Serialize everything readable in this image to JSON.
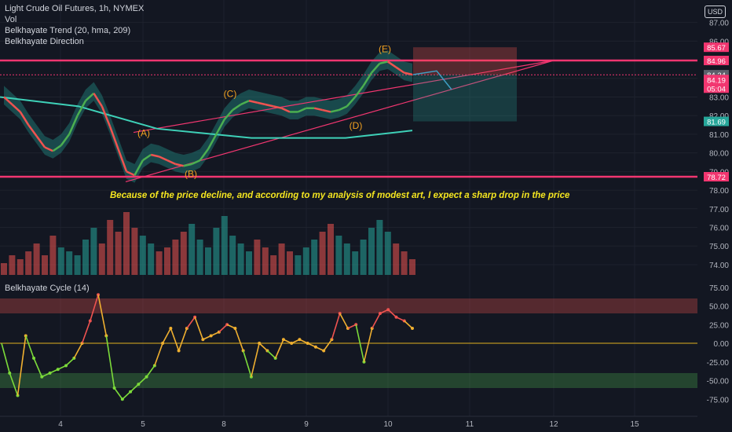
{
  "legend": {
    "symbol": "Light Crude Oil Futures, 1h, NYMEX",
    "vol": "Vol",
    "trend": "Belkhayate Trend (20, hma, 209)",
    "direction": "Belkhayate Direction",
    "cycle": "Belkhayate Cycle  (14)"
  },
  "currency": "USD",
  "note": "Because of the price decline, and according to my analysis of modest art, I expect a sharp drop in the price",
  "colors": {
    "background": "#131722",
    "pink_line": "#f23670",
    "teal": "#26a69a",
    "red": "#ef5350",
    "green_line": "#4caf50",
    "annotation_text": "#f0a020",
    "note_text": "#f5e620"
  },
  "chart_data": [
    {
      "type": "line",
      "title": "Light Crude Oil Futures, 1h, NYMEX",
      "x_tick_labels": [
        "4",
        "5",
        "8",
        "9",
        "10",
        "11",
        "12",
        "15"
      ],
      "y_tick_labels": [
        "87.00",
        "86.00",
        "84.00",
        "83.00",
        "82.00",
        "81.00",
        "80.00",
        "79.00",
        "78.00",
        "77.00",
        "76.00",
        "75.00",
        "74.00"
      ],
      "ylim": [
        73.4,
        88.2
      ],
      "close": [
        83.0,
        82.6,
        82.2,
        81.5,
        80.9,
        80.3,
        80.1,
        80.4,
        81.0,
        82.0,
        82.8,
        83.2,
        82.5,
        81.4,
        80.2,
        79.0,
        78.8,
        79.6,
        79.9,
        79.8,
        79.6,
        79.4,
        79.3,
        79.4,
        79.6,
        80.2,
        81.0,
        81.8,
        82.3,
        82.6,
        82.8,
        82.7,
        82.6,
        82.5,
        82.4,
        82.2,
        82.2,
        82.4,
        82.4,
        82.3,
        82.2,
        82.3,
        82.5,
        83.0,
        83.6,
        84.3,
        84.8,
        84.9,
        84.6,
        84.3,
        84.2
      ],
      "overlays": {
        "arc": [
          83.0,
          82.5,
          81.3,
          80.8,
          80.8,
          81.2
        ],
        "upper_channel_line": {
          "from": [
            170,
            81.1
          ],
          "to": [
            705,
            84.96
          ]
        },
        "lower_channel_line": {
          "from": [
            160,
            78.45
          ],
          "to": [
            705,
            84.96
          ]
        }
      },
      "horizontal_lines": [
        {
          "value": 84.96,
          "label": "84.96"
        },
        {
          "value": 78.72,
          "label": "78.72"
        },
        {
          "value": 84.19,
          "label": "84.19",
          "dotted": true
        }
      ],
      "price_badges": [
        {
          "label": "85.67",
          "color": "#f23670"
        },
        {
          "label": "84.96",
          "color": "#f23670"
        },
        {
          "label": "84.24",
          "color": "#5d606b"
        },
        {
          "label": "84.19",
          "color": "#f23670"
        },
        {
          "label": "05:04",
          "color": "#f23670"
        },
        {
          "label": "81.69",
          "color": "#26a69a"
        },
        {
          "label": "78.72",
          "color": "#f23670"
        }
      ],
      "position_box": {
        "target": 81.69,
        "entry": 84.19,
        "stop": 85.67
      },
      "wave_labels": [
        {
          "text": "(A)",
          "value": 80.9
        },
        {
          "text": "(B)",
          "value": 78.7
        },
        {
          "text": "(C)",
          "value": 83.0
        },
        {
          "text": "(D)",
          "value": 81.3
        },
        {
          "text": "(E)",
          "value": 85.4
        }
      ],
      "volume": [
        3,
        5,
        4,
        6,
        8,
        5,
        10,
        7,
        6,
        5,
        9,
        12,
        8,
        14,
        11,
        16,
        12,
        10,
        8,
        6,
        7,
        9,
        11,
        13,
        9,
        7,
        12,
        15,
        10,
        8,
        6,
        9,
        7,
        5,
        8,
        6,
        5,
        7,
        9,
        11,
        13,
        10,
        8,
        6,
        9,
        12,
        14,
        11,
        8,
        6,
        4
      ]
    },
    {
      "type": "line",
      "title": "Belkhayate Cycle  (14)",
      "y_tick_labels": [
        "75.00",
        "50.00",
        "25.00",
        "0.00",
        "-25.00",
        "-50.00",
        "-75.00"
      ],
      "ylim": [
        -85,
        80
      ],
      "zones": [
        {
          "from": 40,
          "to": 60
        },
        {
          "from": -40,
          "to": -60
        }
      ],
      "values": [
        0,
        -40,
        -70,
        10,
        -20,
        -45,
        -40,
        -35,
        -30,
        -20,
        0,
        30,
        65,
        10,
        -60,
        -75,
        -65,
        -55,
        -45,
        -30,
        0,
        20,
        -10,
        20,
        35,
        5,
        10,
        15,
        25,
        20,
        -10,
        -45,
        0,
        -10,
        -20,
        5,
        0,
        5,
        0,
        -5,
        -10,
        5,
        40,
        20,
        25,
        -25,
        20,
        40,
        45,
        35,
        30,
        20
      ]
    }
  ]
}
